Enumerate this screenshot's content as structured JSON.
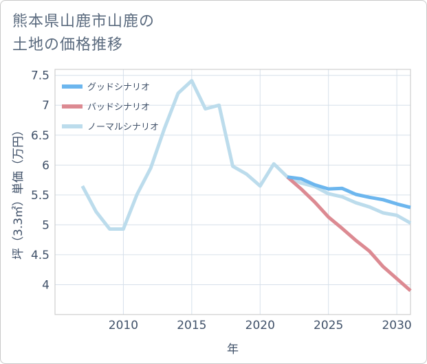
{
  "chart_data": {
    "type": "line",
    "title": "熊本県山鹿市山鹿の土地の価格推移",
    "title_lines": [
      "熊本県山鹿市山鹿の",
      "土地の価格推移"
    ],
    "xlabel": "年",
    "ylabel": "坪（3.3㎡）単価（万円）",
    "xlim": [
      2005,
      2031
    ],
    "ylim": [
      3.5,
      7.6
    ],
    "x_ticks": [
      2010,
      2015,
      2020,
      2025,
      2030
    ],
    "y_ticks": [
      4,
      4.5,
      5,
      5.5,
      6,
      6.5,
      7,
      7.5
    ],
    "y_tick_labels": [
      "4",
      "4.5",
      "5",
      "5.5",
      "6",
      "6.5",
      "7",
      "7.5"
    ],
    "grid": true,
    "legend_position": "top-left",
    "series": [
      {
        "name": "グッドシナリオ",
        "color": "#6cb6ee",
        "x": [
          2022,
          2023,
          2024,
          2025,
          2026,
          2027,
          2028,
          2029,
          2030,
          2031
        ],
        "values": [
          5.8,
          5.77,
          5.67,
          5.6,
          5.61,
          5.51,
          5.46,
          5.42,
          5.35,
          5.29
        ]
      },
      {
        "name": "バッドシナリオ",
        "color": "#dc8a92",
        "x": [
          2022,
          2023,
          2024,
          2025,
          2026,
          2027,
          2028,
          2029,
          2030,
          2031
        ],
        "values": [
          5.8,
          5.6,
          5.38,
          5.13,
          4.94,
          4.74,
          4.56,
          4.3,
          4.1,
          3.9
        ]
      },
      {
        "name": "ノーマルシナリオ",
        "color": "#bcdcec",
        "x": [
          2007,
          2008,
          2009,
          2010,
          2011,
          2012,
          2013,
          2014,
          2015,
          2016,
          2017,
          2018,
          2019,
          2020,
          2021,
          2022,
          2023,
          2024,
          2025,
          2026,
          2027,
          2028,
          2029,
          2030,
          2031
        ],
        "values": [
          5.65,
          5.22,
          4.93,
          4.93,
          5.51,
          5.95,
          6.61,
          7.2,
          7.41,
          6.94,
          7.0,
          5.98,
          5.85,
          5.65,
          6.02,
          5.8,
          5.7,
          5.64,
          5.52,
          5.47,
          5.37,
          5.3,
          5.2,
          5.16,
          5.03
        ]
      }
    ]
  }
}
